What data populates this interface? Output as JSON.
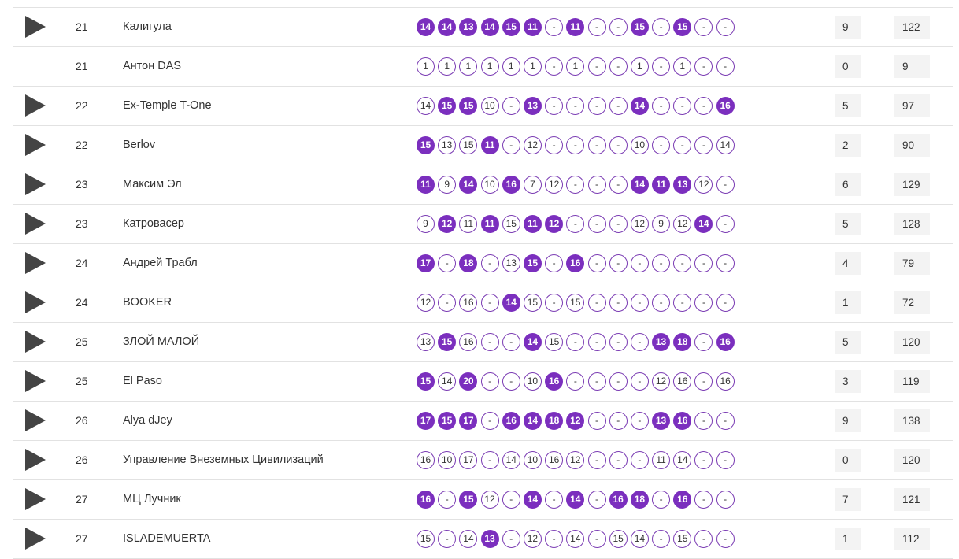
{
  "colors": {
    "accent": "#7b2fbe",
    "accent_border": "#7a3bb3",
    "play_icon": "#444444",
    "row_border": "#e2e2e2",
    "box_bg": "#f3f3f3"
  },
  "icons": {
    "play": "play-icon"
  },
  "rows": [
    {
      "has_play": true,
      "place": "21",
      "team": "Калигула",
      "wins": "9",
      "total": "122",
      "rounds": [
        {
          "v": "14",
          "f": true
        },
        {
          "v": "14",
          "f": true
        },
        {
          "v": "13",
          "f": true
        },
        {
          "v": "14",
          "f": true
        },
        {
          "v": "15",
          "f": true
        },
        {
          "v": "11",
          "f": true
        },
        {
          "v": "-",
          "f": false
        },
        {
          "v": "11",
          "f": true
        },
        {
          "v": "-",
          "f": false
        },
        {
          "v": "-",
          "f": false
        },
        {
          "v": "15",
          "f": true
        },
        {
          "v": "-",
          "f": false
        },
        {
          "v": "15",
          "f": true
        },
        {
          "v": "-",
          "f": false
        },
        {
          "v": "-",
          "f": false
        }
      ]
    },
    {
      "has_play": false,
      "place": "21",
      "team": "Антон DAS",
      "wins": "0",
      "total": "9",
      "rounds": [
        {
          "v": "1",
          "f": false
        },
        {
          "v": "1",
          "f": false
        },
        {
          "v": "1",
          "f": false
        },
        {
          "v": "1",
          "f": false
        },
        {
          "v": "1",
          "f": false
        },
        {
          "v": "1",
          "f": false
        },
        {
          "v": "-",
          "f": false
        },
        {
          "v": "1",
          "f": false
        },
        {
          "v": "-",
          "f": false
        },
        {
          "v": "-",
          "f": false
        },
        {
          "v": "1",
          "f": false
        },
        {
          "v": "-",
          "f": false
        },
        {
          "v": "1",
          "f": false
        },
        {
          "v": "-",
          "f": false
        },
        {
          "v": "-",
          "f": false
        }
      ]
    },
    {
      "has_play": true,
      "place": "22",
      "team": "Ex-Temple T-One",
      "wins": "5",
      "total": "97",
      "rounds": [
        {
          "v": "14",
          "f": false
        },
        {
          "v": "15",
          "f": true
        },
        {
          "v": "15",
          "f": true
        },
        {
          "v": "10",
          "f": false
        },
        {
          "v": "-",
          "f": false
        },
        {
          "v": "13",
          "f": true
        },
        {
          "v": "-",
          "f": false
        },
        {
          "v": "-",
          "f": false
        },
        {
          "v": "-",
          "f": false
        },
        {
          "v": "-",
          "f": false
        },
        {
          "v": "14",
          "f": true
        },
        {
          "v": "-",
          "f": false
        },
        {
          "v": "-",
          "f": false
        },
        {
          "v": "-",
          "f": false
        },
        {
          "v": "16",
          "f": true
        }
      ]
    },
    {
      "has_play": true,
      "place": "22",
      "team": "Berlov",
      "wins": "2",
      "total": "90",
      "rounds": [
        {
          "v": "15",
          "f": true
        },
        {
          "v": "13",
          "f": false
        },
        {
          "v": "15",
          "f": false
        },
        {
          "v": "11",
          "f": true
        },
        {
          "v": "-",
          "f": false
        },
        {
          "v": "12",
          "f": false
        },
        {
          "v": "-",
          "f": false
        },
        {
          "v": "-",
          "f": false
        },
        {
          "v": "-",
          "f": false
        },
        {
          "v": "-",
          "f": false
        },
        {
          "v": "10",
          "f": false
        },
        {
          "v": "-",
          "f": false
        },
        {
          "v": "-",
          "f": false
        },
        {
          "v": "-",
          "f": false
        },
        {
          "v": "14",
          "f": false
        }
      ]
    },
    {
      "has_play": true,
      "place": "23",
      "team": "Максим Эл",
      "wins": "6",
      "total": "129",
      "rounds": [
        {
          "v": "11",
          "f": true
        },
        {
          "v": "9",
          "f": false
        },
        {
          "v": "14",
          "f": true
        },
        {
          "v": "10",
          "f": false
        },
        {
          "v": "16",
          "f": true
        },
        {
          "v": "7",
          "f": false
        },
        {
          "v": "12",
          "f": false
        },
        {
          "v": "-",
          "f": false
        },
        {
          "v": "-",
          "f": false
        },
        {
          "v": "-",
          "f": false
        },
        {
          "v": "14",
          "f": true
        },
        {
          "v": "11",
          "f": true
        },
        {
          "v": "13",
          "f": true
        },
        {
          "v": "12",
          "f": false
        },
        {
          "v": "-",
          "f": false
        }
      ]
    },
    {
      "has_play": true,
      "place": "23",
      "team": "Катровасер",
      "wins": "5",
      "total": "128",
      "rounds": [
        {
          "v": "9",
          "f": false
        },
        {
          "v": "12",
          "f": true
        },
        {
          "v": "11",
          "f": false
        },
        {
          "v": "11",
          "f": true
        },
        {
          "v": "15",
          "f": false
        },
        {
          "v": "11",
          "f": true
        },
        {
          "v": "12",
          "f": true
        },
        {
          "v": "-",
          "f": false
        },
        {
          "v": "-",
          "f": false
        },
        {
          "v": "-",
          "f": false
        },
        {
          "v": "12",
          "f": false
        },
        {
          "v": "9",
          "f": false
        },
        {
          "v": "12",
          "f": false
        },
        {
          "v": "14",
          "f": true
        },
        {
          "v": "-",
          "f": false
        }
      ]
    },
    {
      "has_play": true,
      "place": "24",
      "team": "Андрей Трабл",
      "wins": "4",
      "total": "79",
      "rounds": [
        {
          "v": "17",
          "f": true
        },
        {
          "v": "-",
          "f": false
        },
        {
          "v": "18",
          "f": true
        },
        {
          "v": "-",
          "f": false
        },
        {
          "v": "13",
          "f": false
        },
        {
          "v": "15",
          "f": true
        },
        {
          "v": "-",
          "f": false
        },
        {
          "v": "16",
          "f": true
        },
        {
          "v": "-",
          "f": false
        },
        {
          "v": "-",
          "f": false
        },
        {
          "v": "-",
          "f": false
        },
        {
          "v": "-",
          "f": false
        },
        {
          "v": "-",
          "f": false
        },
        {
          "v": "-",
          "f": false
        },
        {
          "v": "-",
          "f": false
        }
      ]
    },
    {
      "has_play": true,
      "place": "24",
      "team": "BOOKER",
      "wins": "1",
      "total": "72",
      "rounds": [
        {
          "v": "12",
          "f": false
        },
        {
          "v": "-",
          "f": false
        },
        {
          "v": "16",
          "f": false
        },
        {
          "v": "-",
          "f": false
        },
        {
          "v": "14",
          "f": true
        },
        {
          "v": "15",
          "f": false
        },
        {
          "v": "-",
          "f": false
        },
        {
          "v": "15",
          "f": false
        },
        {
          "v": "-",
          "f": false
        },
        {
          "v": "-",
          "f": false
        },
        {
          "v": "-",
          "f": false
        },
        {
          "v": "-",
          "f": false
        },
        {
          "v": "-",
          "f": false
        },
        {
          "v": "-",
          "f": false
        },
        {
          "v": "-",
          "f": false
        }
      ]
    },
    {
      "has_play": true,
      "place": "25",
      "team": "ЗЛОЙ МАЛОЙ",
      "wins": "5",
      "total": "120",
      "rounds": [
        {
          "v": "13",
          "f": false
        },
        {
          "v": "15",
          "f": true
        },
        {
          "v": "16",
          "f": false
        },
        {
          "v": "-",
          "f": false
        },
        {
          "v": "-",
          "f": false
        },
        {
          "v": "14",
          "f": true
        },
        {
          "v": "15",
          "f": false
        },
        {
          "v": "-",
          "f": false
        },
        {
          "v": "-",
          "f": false
        },
        {
          "v": "-",
          "f": false
        },
        {
          "v": "-",
          "f": false
        },
        {
          "v": "13",
          "f": true
        },
        {
          "v": "18",
          "f": true
        },
        {
          "v": "-",
          "f": false
        },
        {
          "v": "16",
          "f": true
        }
      ]
    },
    {
      "has_play": true,
      "place": "25",
      "team": "El Paso",
      "wins": "3",
      "total": "119",
      "rounds": [
        {
          "v": "15",
          "f": true
        },
        {
          "v": "14",
          "f": false
        },
        {
          "v": "20",
          "f": true
        },
        {
          "v": "-",
          "f": false
        },
        {
          "v": "-",
          "f": false
        },
        {
          "v": "10",
          "f": false
        },
        {
          "v": "16",
          "f": true
        },
        {
          "v": "-",
          "f": false
        },
        {
          "v": "-",
          "f": false
        },
        {
          "v": "-",
          "f": false
        },
        {
          "v": "-",
          "f": false
        },
        {
          "v": "12",
          "f": false
        },
        {
          "v": "16",
          "f": false
        },
        {
          "v": "-",
          "f": false
        },
        {
          "v": "16",
          "f": false
        }
      ]
    },
    {
      "has_play": true,
      "place": "26",
      "team": "Alya dJey",
      "wins": "9",
      "total": "138",
      "rounds": [
        {
          "v": "17",
          "f": true
        },
        {
          "v": "15",
          "f": true
        },
        {
          "v": "17",
          "f": true
        },
        {
          "v": "-",
          "f": false
        },
        {
          "v": "16",
          "f": true
        },
        {
          "v": "14",
          "f": true
        },
        {
          "v": "18",
          "f": true
        },
        {
          "v": "12",
          "f": true
        },
        {
          "v": "-",
          "f": false
        },
        {
          "v": "-",
          "f": false
        },
        {
          "v": "-",
          "f": false
        },
        {
          "v": "13",
          "f": true
        },
        {
          "v": "16",
          "f": true
        },
        {
          "v": "-",
          "f": false
        },
        {
          "v": "-",
          "f": false
        }
      ]
    },
    {
      "has_play": true,
      "place": "26",
      "team": "Управление Внеземных Цивилизаций",
      "wins": "0",
      "total": "120",
      "rounds": [
        {
          "v": "16",
          "f": false
        },
        {
          "v": "10",
          "f": false
        },
        {
          "v": "17",
          "f": false
        },
        {
          "v": "-",
          "f": false
        },
        {
          "v": "14",
          "f": false
        },
        {
          "v": "10",
          "f": false
        },
        {
          "v": "16",
          "f": false
        },
        {
          "v": "12",
          "f": false
        },
        {
          "v": "-",
          "f": false
        },
        {
          "v": "-",
          "f": false
        },
        {
          "v": "-",
          "f": false
        },
        {
          "v": "11",
          "f": false
        },
        {
          "v": "14",
          "f": false
        },
        {
          "v": "-",
          "f": false
        },
        {
          "v": "-",
          "f": false
        }
      ]
    },
    {
      "has_play": true,
      "place": "27",
      "team": "МЦ Лучник",
      "wins": "7",
      "total": "121",
      "rounds": [
        {
          "v": "16",
          "f": true
        },
        {
          "v": "-",
          "f": false
        },
        {
          "v": "15",
          "f": true
        },
        {
          "v": "12",
          "f": false
        },
        {
          "v": "-",
          "f": false
        },
        {
          "v": "14",
          "f": true
        },
        {
          "v": "-",
          "f": false
        },
        {
          "v": "14",
          "f": true
        },
        {
          "v": "-",
          "f": false
        },
        {
          "v": "16",
          "f": true
        },
        {
          "v": "18",
          "f": true
        },
        {
          "v": "-",
          "f": false
        },
        {
          "v": "16",
          "f": true
        },
        {
          "v": "-",
          "f": false
        },
        {
          "v": "-",
          "f": false
        }
      ]
    },
    {
      "has_play": true,
      "place": "27",
      "team": "ISLADEMUERTA",
      "wins": "1",
      "total": "112",
      "rounds": [
        {
          "v": "15",
          "f": false
        },
        {
          "v": "-",
          "f": false
        },
        {
          "v": "14",
          "f": false
        },
        {
          "v": "13",
          "f": true
        },
        {
          "v": "-",
          "f": false
        },
        {
          "v": "12",
          "f": false
        },
        {
          "v": "-",
          "f": false
        },
        {
          "v": "14",
          "f": false
        },
        {
          "v": "-",
          "f": false
        },
        {
          "v": "15",
          "f": false
        },
        {
          "v": "14",
          "f": false
        },
        {
          "v": "-",
          "f": false
        },
        {
          "v": "15",
          "f": false
        },
        {
          "v": "-",
          "f": false
        },
        {
          "v": "-",
          "f": false
        }
      ]
    }
  ]
}
